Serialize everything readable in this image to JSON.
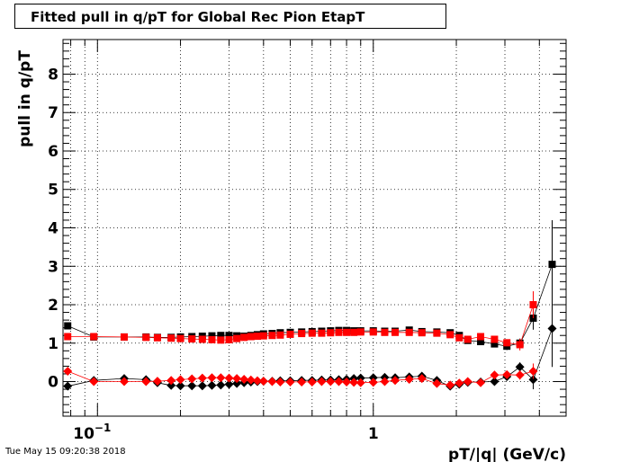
{
  "title": "Fitted pull in q/pT for Global Rec Pion EtapT",
  "timestamp": "Tue May 15 09:20:38 2018",
  "chart_data": {
    "type": "scatter",
    "xscale": "log",
    "xlabel": "pT/|q| (GeV/c)",
    "ylabel": "pull in q/pT",
    "xlim": [
      0.075,
      5.0
    ],
    "ylim": [
      -0.9,
      8.9
    ],
    "grid": true,
    "yticks": [
      0,
      1,
      2,
      3,
      4,
      5,
      6,
      7,
      8
    ],
    "xticklabels": [
      {
        "value": 0.1,
        "base": "10",
        "exp": "−1"
      },
      {
        "value": 1,
        "base": "1",
        "exp": ""
      }
    ],
    "series": [
      {
        "color": "#000000",
        "marker": "square",
        "points": [
          [
            0.078,
            1.45
          ],
          [
            0.097,
            1.16
          ],
          [
            0.125,
            1.16
          ],
          [
            0.15,
            1.16
          ],
          [
            0.165,
            1.15
          ],
          [
            0.185,
            1.15
          ],
          [
            0.2,
            1.16
          ],
          [
            0.22,
            1.17
          ],
          [
            0.24,
            1.18
          ],
          [
            0.26,
            1.19
          ],
          [
            0.28,
            1.2
          ],
          [
            0.3,
            1.2
          ],
          [
            0.32,
            1.19
          ],
          [
            0.34,
            1.18
          ],
          [
            0.36,
            1.2
          ],
          [
            0.38,
            1.22
          ],
          [
            0.4,
            1.24
          ],
          [
            0.43,
            1.25
          ],
          [
            0.46,
            1.27
          ],
          [
            0.5,
            1.28
          ],
          [
            0.55,
            1.29
          ],
          [
            0.6,
            1.3
          ],
          [
            0.65,
            1.31
          ],
          [
            0.7,
            1.32
          ],
          [
            0.75,
            1.33
          ],
          [
            0.8,
            1.33
          ],
          [
            0.85,
            1.32
          ],
          [
            0.9,
            1.32
          ],
          [
            1.0,
            1.32
          ],
          [
            1.1,
            1.31
          ],
          [
            1.2,
            1.31
          ],
          [
            1.35,
            1.34
          ],
          [
            1.5,
            1.3
          ],
          [
            1.7,
            1.29
          ],
          [
            1.9,
            1.27
          ],
          [
            2.05,
            1.2
          ],
          [
            2.2,
            1.07
          ],
          [
            2.45,
            1.04
          ],
          [
            2.75,
            0.98
          ],
          [
            3.05,
            0.92
          ],
          [
            3.4,
            1.0
          ],
          [
            3.8,
            1.65
          ],
          [
            4.45,
            3.05
          ]
        ],
        "errors": [
          0.06,
          0.02,
          0.02,
          0.02,
          0.02,
          0.02,
          0.02,
          0.02,
          0.02,
          0.02,
          0.02,
          0.02,
          0.02,
          0.02,
          0.02,
          0.02,
          0.02,
          0.02,
          0.02,
          0.02,
          0.02,
          0.02,
          0.02,
          0.02,
          0.02,
          0.02,
          0.02,
          0.02,
          0.02,
          0.02,
          0.02,
          0.02,
          0.02,
          0.03,
          0.03,
          0.05,
          0.05,
          0.07,
          0.08,
          0.1,
          0.12,
          0.3,
          1.15
        ]
      },
      {
        "color": "#ff0000",
        "marker": "square",
        "points": [
          [
            0.078,
            1.17
          ],
          [
            0.097,
            1.17
          ],
          [
            0.125,
            1.16
          ],
          [
            0.15,
            1.15
          ],
          [
            0.165,
            1.14
          ],
          [
            0.185,
            1.13
          ],
          [
            0.2,
            1.12
          ],
          [
            0.22,
            1.11
          ],
          [
            0.24,
            1.1
          ],
          [
            0.26,
            1.09
          ],
          [
            0.28,
            1.08
          ],
          [
            0.3,
            1.09
          ],
          [
            0.32,
            1.12
          ],
          [
            0.34,
            1.15
          ],
          [
            0.36,
            1.17
          ],
          [
            0.38,
            1.18
          ],
          [
            0.4,
            1.19
          ],
          [
            0.43,
            1.2
          ],
          [
            0.46,
            1.21
          ],
          [
            0.5,
            1.23
          ],
          [
            0.55,
            1.25
          ],
          [
            0.6,
            1.26
          ],
          [
            0.65,
            1.26
          ],
          [
            0.7,
            1.27
          ],
          [
            0.75,
            1.28
          ],
          [
            0.8,
            1.28
          ],
          [
            0.85,
            1.28
          ],
          [
            0.9,
            1.29
          ],
          [
            1.0,
            1.29
          ],
          [
            1.1,
            1.28
          ],
          [
            1.2,
            1.28
          ],
          [
            1.35,
            1.28
          ],
          [
            1.5,
            1.27
          ],
          [
            1.7,
            1.26
          ],
          [
            1.9,
            1.22
          ],
          [
            2.05,
            1.14
          ],
          [
            2.2,
            1.1
          ],
          [
            2.45,
            1.17
          ],
          [
            2.75,
            1.1
          ],
          [
            3.05,
            1.01
          ],
          [
            3.4,
            0.96
          ],
          [
            3.8,
            2.0
          ]
        ],
        "errors": [
          0.03,
          0.02,
          0.02,
          0.02,
          0.02,
          0.02,
          0.02,
          0.02,
          0.02,
          0.02,
          0.02,
          0.02,
          0.02,
          0.02,
          0.02,
          0.02,
          0.02,
          0.02,
          0.02,
          0.02,
          0.02,
          0.02,
          0.02,
          0.02,
          0.02,
          0.02,
          0.02,
          0.02,
          0.02,
          0.02,
          0.02,
          0.02,
          0.02,
          0.03,
          0.03,
          0.05,
          0.05,
          0.06,
          0.07,
          0.09,
          0.15,
          0.35
        ]
      },
      {
        "color": "#000000",
        "marker": "diamond",
        "points": [
          [
            0.078,
            -0.12
          ],
          [
            0.097,
            0.03
          ],
          [
            0.125,
            0.08
          ],
          [
            0.15,
            0.05
          ],
          [
            0.165,
            -0.03
          ],
          [
            0.185,
            -0.1
          ],
          [
            0.2,
            -0.11
          ],
          [
            0.22,
            -0.11
          ],
          [
            0.24,
            -0.11
          ],
          [
            0.26,
            -0.1
          ],
          [
            0.28,
            -0.09
          ],
          [
            0.3,
            -0.07
          ],
          [
            0.32,
            -0.05
          ],
          [
            0.34,
            -0.03
          ],
          [
            0.36,
            -0.01
          ],
          [
            0.38,
            0.0
          ],
          [
            0.4,
            0.01
          ],
          [
            0.43,
            0.01
          ],
          [
            0.46,
            0.02
          ],
          [
            0.5,
            0.02
          ],
          [
            0.55,
            0.03
          ],
          [
            0.6,
            0.03
          ],
          [
            0.65,
            0.04
          ],
          [
            0.7,
            0.04
          ],
          [
            0.75,
            0.05
          ],
          [
            0.8,
            0.06
          ],
          [
            0.85,
            0.08
          ],
          [
            0.9,
            0.09
          ],
          [
            1.0,
            0.1
          ],
          [
            1.1,
            0.11
          ],
          [
            1.2,
            0.1
          ],
          [
            1.35,
            0.12
          ],
          [
            1.5,
            0.14
          ],
          [
            1.7,
            0.03
          ],
          [
            1.9,
            -0.12
          ],
          [
            2.05,
            -0.07
          ],
          [
            2.2,
            -0.02
          ],
          [
            2.45,
            -0.01
          ],
          [
            2.75,
            0.0
          ],
          [
            3.05,
            0.13
          ],
          [
            3.4,
            0.38
          ],
          [
            3.8,
            0.05
          ],
          [
            4.45,
            1.38
          ]
        ],
        "errors": [
          0.04,
          0.02,
          0.02,
          0.02,
          0.02,
          0.02,
          0.02,
          0.02,
          0.02,
          0.02,
          0.02,
          0.02,
          0.02,
          0.02,
          0.02,
          0.02,
          0.02,
          0.02,
          0.02,
          0.02,
          0.02,
          0.02,
          0.02,
          0.02,
          0.02,
          0.02,
          0.02,
          0.02,
          0.02,
          0.02,
          0.02,
          0.02,
          0.02,
          0.03,
          0.03,
          0.05,
          0.05,
          0.06,
          0.07,
          0.09,
          0.12,
          0.25,
          1.0
        ]
      },
      {
        "color": "#ff0000",
        "marker": "diamond",
        "points": [
          [
            0.078,
            0.27
          ],
          [
            0.097,
            0.0
          ],
          [
            0.125,
            0.0
          ],
          [
            0.15,
            0.0
          ],
          [
            0.165,
            0.01
          ],
          [
            0.185,
            0.03
          ],
          [
            0.2,
            0.05
          ],
          [
            0.22,
            0.07
          ],
          [
            0.24,
            0.09
          ],
          [
            0.26,
            0.1
          ],
          [
            0.28,
            0.1
          ],
          [
            0.3,
            0.09
          ],
          [
            0.32,
            0.08
          ],
          [
            0.34,
            0.06
          ],
          [
            0.36,
            0.04
          ],
          [
            0.38,
            0.02
          ],
          [
            0.4,
            0.01
          ],
          [
            0.43,
            0.0
          ],
          [
            0.46,
            -0.01
          ],
          [
            0.5,
            -0.01
          ],
          [
            0.55,
            -0.01
          ],
          [
            0.6,
            -0.01
          ],
          [
            0.65,
            0.0
          ],
          [
            0.7,
            0.0
          ],
          [
            0.75,
            0.0
          ],
          [
            0.8,
            -0.01
          ],
          [
            0.85,
            -0.02
          ],
          [
            0.9,
            -0.03
          ],
          [
            1.0,
            -0.02
          ],
          [
            1.1,
            0.0
          ],
          [
            1.2,
            0.03
          ],
          [
            1.35,
            0.06
          ],
          [
            1.5,
            0.08
          ],
          [
            1.7,
            -0.05
          ],
          [
            1.9,
            -0.09
          ],
          [
            2.05,
            -0.04
          ],
          [
            2.2,
            0.0
          ],
          [
            2.45,
            -0.03
          ],
          [
            2.75,
            0.17
          ],
          [
            3.05,
            0.18
          ],
          [
            3.4,
            0.17
          ],
          [
            3.8,
            0.27
          ]
        ],
        "errors": [
          0.03,
          0.02,
          0.02,
          0.02,
          0.02,
          0.02,
          0.02,
          0.02,
          0.02,
          0.02,
          0.02,
          0.02,
          0.02,
          0.02,
          0.02,
          0.02,
          0.02,
          0.02,
          0.02,
          0.02,
          0.02,
          0.02,
          0.02,
          0.02,
          0.02,
          0.02,
          0.02,
          0.02,
          0.02,
          0.02,
          0.02,
          0.02,
          0.02,
          0.03,
          0.03,
          0.05,
          0.05,
          0.06,
          0.07,
          0.08,
          0.12,
          0.2
        ]
      }
    ]
  }
}
